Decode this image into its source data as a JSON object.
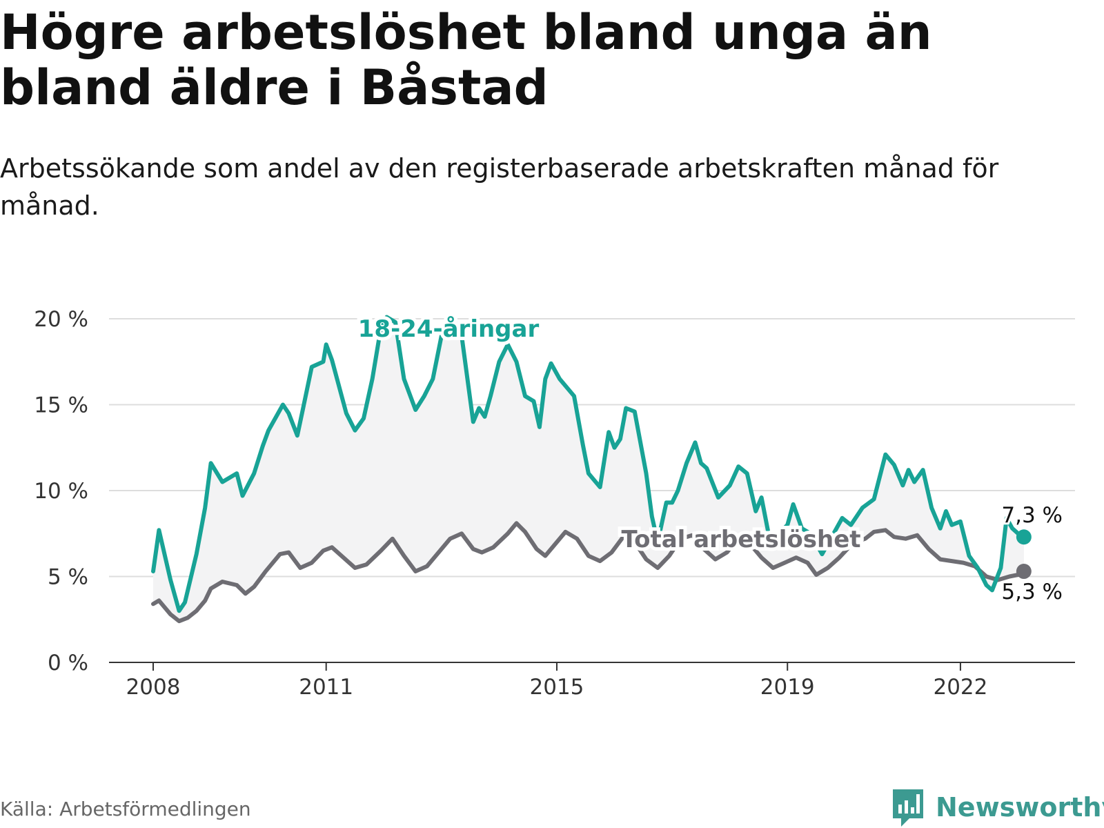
{
  "title": "Högre arbetslöshet bland unga än bland äldre i Båstad",
  "subtitle": "Arbetssökande som andel av den registerbaserade arbetskraften månad för månad.",
  "source": "Källa: Arbetsförmedlingen",
  "brand": "Newsworthy",
  "colors": {
    "young": "#18a396",
    "total": "#6e6d73",
    "band": "#f3f3f4",
    "grid": "#dddddd",
    "axis": "#333333"
  },
  "chart_data": {
    "type": "line",
    "ylim": [
      0,
      20
    ],
    "y_ticks": [
      0,
      5,
      10,
      15,
      20
    ],
    "y_tick_labels": [
      "0 %",
      "5 %",
      "10 %",
      "15 %",
      "20 %"
    ],
    "x_ticks": [
      2008,
      2011,
      2015,
      2019,
      2022
    ],
    "x_tick_labels": [
      "2008",
      "2011",
      "2015",
      "2019",
      "2022"
    ],
    "grid": true,
    "series": [
      {
        "name": "18-24-åringar",
        "label": "18-24-åringar",
        "end_label": "7,3 %",
        "points": [
          [
            2008.0,
            5.3
          ],
          [
            2008.1,
            7.7
          ],
          [
            2008.3,
            4.8
          ],
          [
            2008.45,
            3.0
          ],
          [
            2008.55,
            3.5
          ],
          [
            2008.75,
            6.3
          ],
          [
            2008.9,
            9.0
          ],
          [
            2009.0,
            11.6
          ],
          [
            2009.2,
            10.5
          ],
          [
            2009.45,
            11.0
          ],
          [
            2009.55,
            9.7
          ],
          [
            2009.75,
            11.0
          ],
          [
            2009.9,
            12.6
          ],
          [
            2010.0,
            13.5
          ],
          [
            2010.25,
            15.0
          ],
          [
            2010.35,
            14.5
          ],
          [
            2010.5,
            13.2
          ],
          [
            2010.6,
            14.8
          ],
          [
            2010.75,
            17.2
          ],
          [
            2010.95,
            17.5
          ],
          [
            2011.0,
            18.5
          ],
          [
            2011.1,
            17.6
          ],
          [
            2011.35,
            14.5
          ],
          [
            2011.5,
            13.5
          ],
          [
            2011.65,
            14.2
          ],
          [
            2011.8,
            16.5
          ],
          [
            2011.95,
            19.5
          ],
          [
            2012.05,
            20.1
          ],
          [
            2012.2,
            19.8
          ],
          [
            2012.35,
            16.5
          ],
          [
            2012.55,
            14.7
          ],
          [
            2012.7,
            15.5
          ],
          [
            2012.85,
            16.5
          ],
          [
            2013.0,
            19.0
          ],
          [
            2013.2,
            20.0
          ],
          [
            2013.35,
            19.0
          ],
          [
            2013.55,
            14.0
          ],
          [
            2013.65,
            14.8
          ],
          [
            2013.75,
            14.3
          ],
          [
            2013.85,
            15.5
          ],
          [
            2014.0,
            17.5
          ],
          [
            2014.15,
            18.5
          ],
          [
            2014.3,
            17.5
          ],
          [
            2014.45,
            15.5
          ],
          [
            2014.6,
            15.2
          ],
          [
            2014.7,
            13.7
          ],
          [
            2014.8,
            16.5
          ],
          [
            2014.9,
            17.4
          ],
          [
            2015.05,
            16.5
          ],
          [
            2015.3,
            15.5
          ],
          [
            2015.45,
            12.7
          ],
          [
            2015.55,
            11.0
          ],
          [
            2015.75,
            10.2
          ],
          [
            2015.9,
            13.4
          ],
          [
            2016.0,
            12.5
          ],
          [
            2016.1,
            13.0
          ],
          [
            2016.2,
            14.8
          ],
          [
            2016.35,
            14.6
          ],
          [
            2016.55,
            11.0
          ],
          [
            2016.65,
            8.5
          ],
          [
            2016.75,
            7.0
          ],
          [
            2016.9,
            9.3
          ],
          [
            2017.0,
            9.3
          ],
          [
            2017.1,
            10.0
          ],
          [
            2017.25,
            11.6
          ],
          [
            2017.4,
            12.8
          ],
          [
            2017.5,
            11.6
          ],
          [
            2017.6,
            11.3
          ],
          [
            2017.8,
            9.6
          ],
          [
            2018.0,
            10.3
          ],
          [
            2018.15,
            11.4
          ],
          [
            2018.3,
            11.0
          ],
          [
            2018.45,
            8.8
          ],
          [
            2018.55,
            9.6
          ],
          [
            2018.7,
            7.0
          ],
          [
            2018.85,
            7.5
          ],
          [
            2019.0,
            8.0
          ],
          [
            2019.1,
            9.2
          ],
          [
            2019.25,
            7.8
          ],
          [
            2019.4,
            7.5
          ],
          [
            2019.6,
            6.3
          ],
          [
            2019.8,
            7.5
          ],
          [
            2019.95,
            8.4
          ],
          [
            2020.1,
            8.0
          ],
          [
            2020.3,
            9.0
          ],
          [
            2020.5,
            9.5
          ],
          [
            2020.7,
            12.1
          ],
          [
            2020.85,
            11.5
          ],
          [
            2021.0,
            10.3
          ],
          [
            2021.1,
            11.2
          ],
          [
            2021.2,
            10.5
          ],
          [
            2021.35,
            11.2
          ],
          [
            2021.5,
            9.0
          ],
          [
            2021.65,
            7.8
          ],
          [
            2021.75,
            8.8
          ],
          [
            2021.85,
            8.0
          ],
          [
            2022.0,
            8.2
          ],
          [
            2022.15,
            6.2
          ],
          [
            2022.3,
            5.5
          ],
          [
            2022.45,
            4.5
          ],
          [
            2022.55,
            4.2
          ],
          [
            2022.7,
            5.5
          ],
          [
            2022.8,
            8.4
          ],
          [
            2022.9,
            7.8
          ],
          [
            2023.0,
            7.5
          ],
          [
            2023.1,
            7.3
          ]
        ]
      },
      {
        "name": "Total arbetslöshet",
        "label": "Total arbetslöshet",
        "end_label": "5,3 %",
        "points": [
          [
            2008.0,
            3.4
          ],
          [
            2008.1,
            3.6
          ],
          [
            2008.3,
            2.8
          ],
          [
            2008.45,
            2.4
          ],
          [
            2008.6,
            2.6
          ],
          [
            2008.75,
            3.0
          ],
          [
            2008.9,
            3.6
          ],
          [
            2009.0,
            4.3
          ],
          [
            2009.2,
            4.7
          ],
          [
            2009.45,
            4.5
          ],
          [
            2009.6,
            4.0
          ],
          [
            2009.75,
            4.4
          ],
          [
            2009.95,
            5.3
          ],
          [
            2010.2,
            6.3
          ],
          [
            2010.35,
            6.4
          ],
          [
            2010.55,
            5.5
          ],
          [
            2010.75,
            5.8
          ],
          [
            2010.95,
            6.5
          ],
          [
            2011.1,
            6.7
          ],
          [
            2011.3,
            6.1
          ],
          [
            2011.5,
            5.5
          ],
          [
            2011.7,
            5.7
          ],
          [
            2011.95,
            6.5
          ],
          [
            2012.15,
            7.2
          ],
          [
            2012.35,
            6.2
          ],
          [
            2012.55,
            5.3
          ],
          [
            2012.75,
            5.6
          ],
          [
            2012.95,
            6.4
          ],
          [
            2013.15,
            7.2
          ],
          [
            2013.35,
            7.5
          ],
          [
            2013.55,
            6.6
          ],
          [
            2013.7,
            6.4
          ],
          [
            2013.9,
            6.7
          ],
          [
            2014.15,
            7.5
          ],
          [
            2014.3,
            8.1
          ],
          [
            2014.45,
            7.6
          ],
          [
            2014.65,
            6.6
          ],
          [
            2014.8,
            6.2
          ],
          [
            2014.95,
            6.8
          ],
          [
            2015.15,
            7.6
          ],
          [
            2015.35,
            7.2
          ],
          [
            2015.55,
            6.2
          ],
          [
            2015.75,
            5.9
          ],
          [
            2015.95,
            6.4
          ],
          [
            2016.15,
            7.3
          ],
          [
            2016.35,
            7.0
          ],
          [
            2016.55,
            6.0
          ],
          [
            2016.75,
            5.5
          ],
          [
            2016.95,
            6.2
          ],
          [
            2017.15,
            7.2
          ],
          [
            2017.35,
            7.4
          ],
          [
            2017.55,
            6.6
          ],
          [
            2017.75,
            6.0
          ],
          [
            2017.95,
            6.4
          ],
          [
            2018.15,
            7.2
          ],
          [
            2018.35,
            6.9
          ],
          [
            2018.55,
            6.1
          ],
          [
            2018.75,
            5.5
          ],
          [
            2018.95,
            5.8
          ],
          [
            2019.15,
            6.1
          ],
          [
            2019.35,
            5.8
          ],
          [
            2019.5,
            5.1
          ],
          [
            2019.7,
            5.5
          ],
          [
            2019.9,
            6.1
          ],
          [
            2020.15,
            7.0
          ],
          [
            2020.35,
            7.2
          ],
          [
            2020.5,
            7.6
          ],
          [
            2020.7,
            7.7
          ],
          [
            2020.85,
            7.3
          ],
          [
            2021.05,
            7.2
          ],
          [
            2021.25,
            7.4
          ],
          [
            2021.45,
            6.6
          ],
          [
            2021.65,
            6.0
          ],
          [
            2021.85,
            5.9
          ],
          [
            2022.05,
            5.8
          ],
          [
            2022.25,
            5.6
          ],
          [
            2022.45,
            5.0
          ],
          [
            2022.65,
            4.8
          ],
          [
            2022.85,
            5.0
          ],
          [
            2023.0,
            5.1
          ],
          [
            2023.1,
            5.3
          ]
        ]
      }
    ]
  }
}
